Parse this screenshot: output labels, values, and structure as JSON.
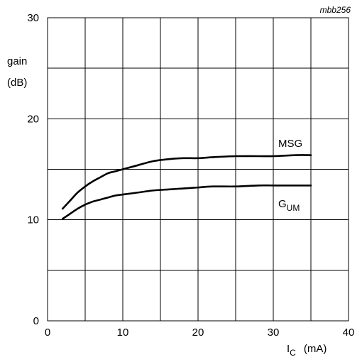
{
  "chart_data": {
    "type": "line",
    "figure_code": "mbb256",
    "title": "",
    "ylabel_line1": "gain",
    "ylabel_line2": "(dB)",
    "xlabel_symbol": "I",
    "xlabel_subscript": "C",
    "xlabel_unit": "(mA)",
    "xlim": [
      0,
      40
    ],
    "ylim": [
      0,
      30
    ],
    "xticks": [
      0,
      10,
      20,
      30,
      40
    ],
    "yticks": [
      0,
      10,
      20,
      30
    ],
    "x_grid_step": 5,
    "y_grid_step": 5,
    "grid": true,
    "series": [
      {
        "name": "MSG",
        "label_main": "MSG",
        "label_sub": "",
        "x": [
          2,
          3,
          4,
          5,
          6,
          7,
          8,
          9,
          10,
          12,
          14,
          16,
          18,
          20,
          22,
          25,
          28,
          30,
          33,
          35
        ],
        "y": [
          11.1,
          11.9,
          12.7,
          13.3,
          13.8,
          14.2,
          14.6,
          14.8,
          15.0,
          15.4,
          15.8,
          16.0,
          16.1,
          16.1,
          16.2,
          16.3,
          16.3,
          16.3,
          16.4,
          16.4
        ]
      },
      {
        "name": "GUM",
        "label_main": "G",
        "label_sub": "UM",
        "x": [
          2,
          3,
          4,
          5,
          6,
          7,
          8,
          9,
          10,
          12,
          14,
          16,
          18,
          20,
          22,
          25,
          28,
          30,
          33,
          35
        ],
        "y": [
          10.1,
          10.6,
          11.1,
          11.5,
          11.8,
          12.0,
          12.2,
          12.4,
          12.5,
          12.7,
          12.9,
          13.0,
          13.1,
          13.2,
          13.3,
          13.3,
          13.4,
          13.4,
          13.4,
          13.4
        ]
      }
    ]
  }
}
